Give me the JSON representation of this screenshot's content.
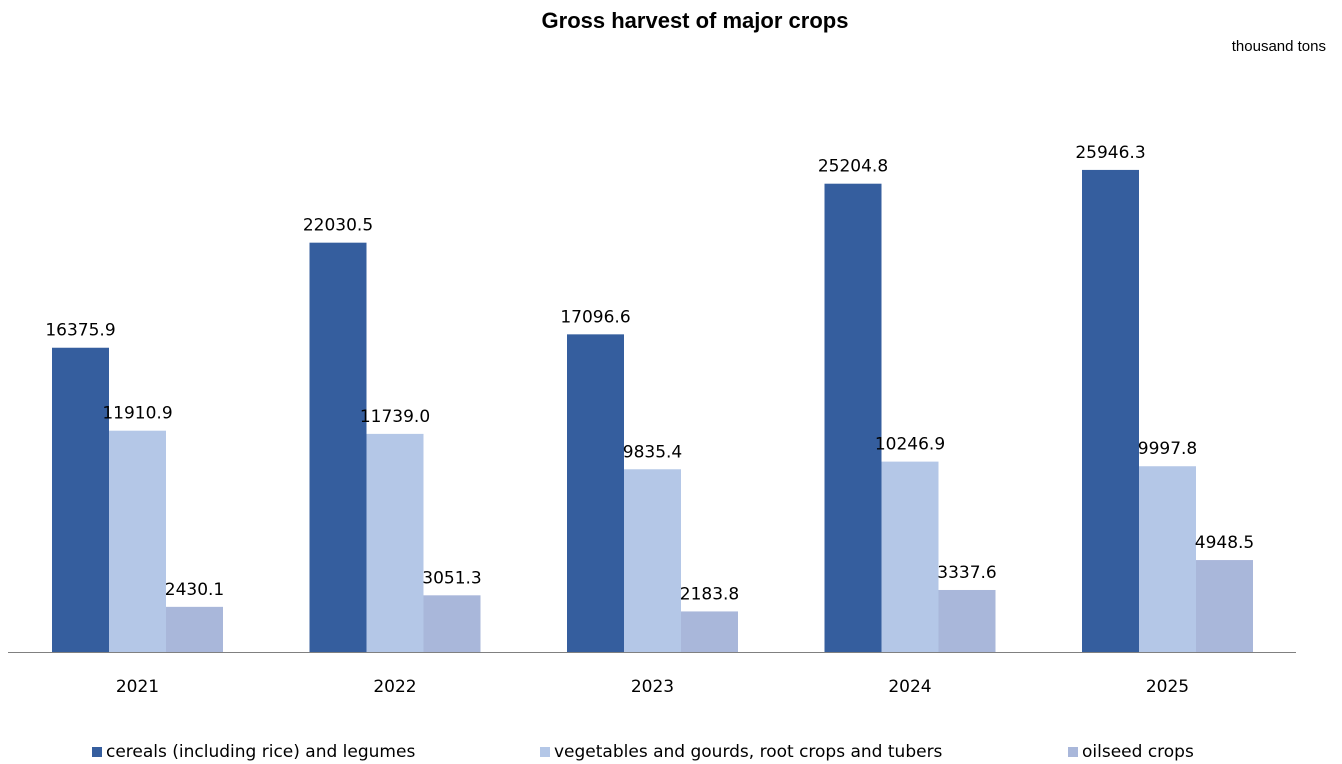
{
  "chart_data": {
    "type": "bar",
    "title": "Gross harvest of major crops",
    "unit_label": "thousand tons",
    "categories": [
      "2021",
      "2022",
      "2023",
      "2024",
      "2025"
    ],
    "series": [
      {
        "name": "cereals (including rice) and legumes",
        "color": "#355E9E",
        "values": [
          16375.9,
          22030.5,
          17096.6,
          25204.8,
          25946.3
        ]
      },
      {
        "name": "vegetables and gourds, root crops and tubers",
        "color": "#B4C7E7",
        "values": [
          11910.9,
          11739.0,
          9835.4,
          10246.9,
          9997.8
        ]
      },
      {
        "name": "oilseed crops",
        "color": "#A9B7DA",
        "values": [
          2430.1,
          3051.3,
          2183.8,
          3337.6,
          4948.5
        ]
      }
    ],
    "ylim": [
      0,
      26000
    ],
    "grid": false,
    "legend_position": "bottom",
    "data_labels": true
  }
}
